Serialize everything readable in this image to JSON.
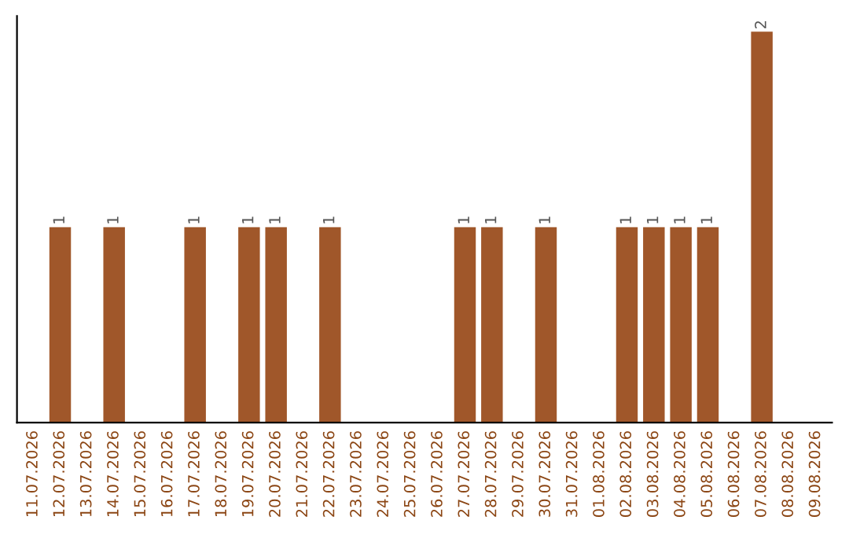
{
  "chart_data": {
    "type": "bar",
    "categories": [
      "11.07.2026",
      "12.07.2026",
      "13.07.2026",
      "14.07.2026",
      "15.07.2026",
      "16.07.2026",
      "17.07.2026",
      "18.07.2026",
      "19.07.2026",
      "20.07.2026",
      "21.07.2026",
      "22.07.2026",
      "23.07.2026",
      "24.07.2026",
      "25.07.2026",
      "26.07.2026",
      "27.07.2026",
      "28.07.2026",
      "29.07.2026",
      "30.07.2026",
      "31.07.2026",
      "01.08.2026",
      "02.08.2026",
      "03.08.2026",
      "04.08.2026",
      "05.08.2026",
      "06.08.2026",
      "07.08.2026",
      "08.08.2026",
      "09.08.2026"
    ],
    "values": [
      0,
      1,
      0,
      1,
      0,
      0,
      1,
      0,
      1,
      1,
      0,
      1,
      0,
      0,
      0,
      0,
      1,
      1,
      0,
      1,
      0,
      0,
      1,
      1,
      1,
      1,
      0,
      2,
      0,
      0
    ],
    "value_labels": [
      null,
      "1",
      null,
      "1",
      null,
      null,
      "1",
      null,
      "1",
      "1",
      null,
      "1",
      null,
      null,
      null,
      null,
      "1",
      "1",
      null,
      "1",
      null,
      null,
      "1",
      "1",
      "1",
      "1",
      null,
      "2",
      null,
      null
    ],
    "color": "#a0572a",
    "ylim": [
      0,
      2.08
    ],
    "tick_labels": "x",
    "grid": false,
    "legend": false
  }
}
